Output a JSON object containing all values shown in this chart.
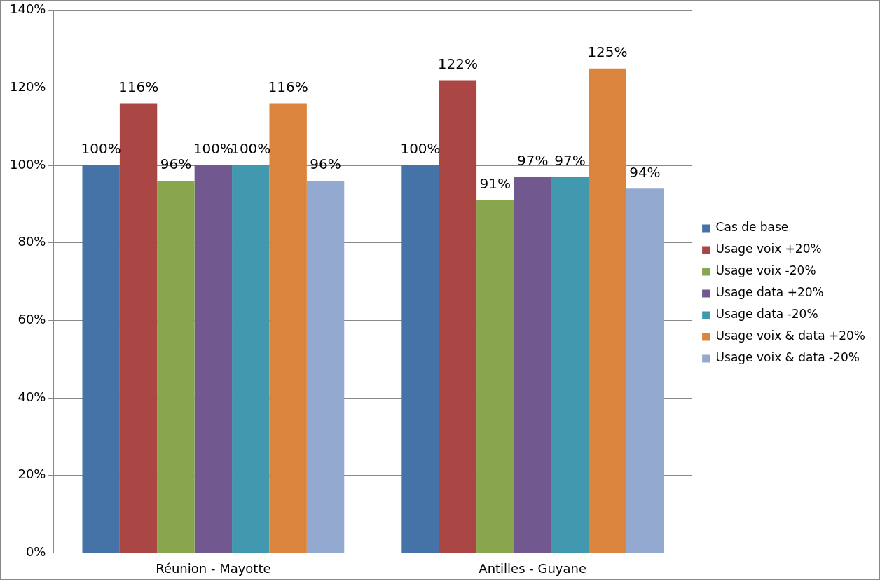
{
  "chart_data": {
    "type": "bar",
    "categories": [
      "Réunion - Mayotte",
      "Antilles - Guyane"
    ],
    "series": [
      {
        "name": "Cas de base",
        "color": "#4673a7",
        "values": [
          100,
          100
        ],
        "value_labels": [
          "100%",
          "100%"
        ]
      },
      {
        "name": "Usage voix +20%",
        "color": "#aa4644",
        "values": [
          116,
          122
        ],
        "value_labels": [
          "116%",
          "122%"
        ]
      },
      {
        "name": "Usage voix -20%",
        "color": "#89a54e",
        "values": [
          96,
          91
        ],
        "value_labels": [
          "96%",
          "91%"
        ]
      },
      {
        "name": "Usage data +20%",
        "color": "#71588f",
        "values": [
          100,
          97
        ],
        "value_labels": [
          "100%",
          "97%"
        ]
      },
      {
        "name": "Usage data -20%",
        "color": "#4198af",
        "values": [
          100,
          97
        ],
        "value_labels": [
          "100%",
          "97%"
        ]
      },
      {
        "name": "Usage voix & data +20%",
        "color": "#db843d",
        "values": [
          116,
          125
        ],
        "value_labels": [
          "116%",
          "125%"
        ]
      },
      {
        "name": "Usage voix & data -20%",
        "color": "#93a9cf",
        "values": [
          96,
          94
        ],
        "value_labels": [
          "96%",
          "94%"
        ]
      }
    ],
    "ylim": [
      0,
      140
    ],
    "yticks": [
      {
        "value": 0,
        "label": "0%"
      },
      {
        "value": 20,
        "label": "20%"
      },
      {
        "value": 40,
        "label": "40%"
      },
      {
        "value": 60,
        "label": "60%"
      },
      {
        "value": 80,
        "label": "80%"
      },
      {
        "value": 100,
        "label": "100%"
      },
      {
        "value": 120,
        "label": "120%"
      },
      {
        "value": 140,
        "label": "140%"
      }
    ],
    "grid": "y",
    "legend": "right"
  }
}
